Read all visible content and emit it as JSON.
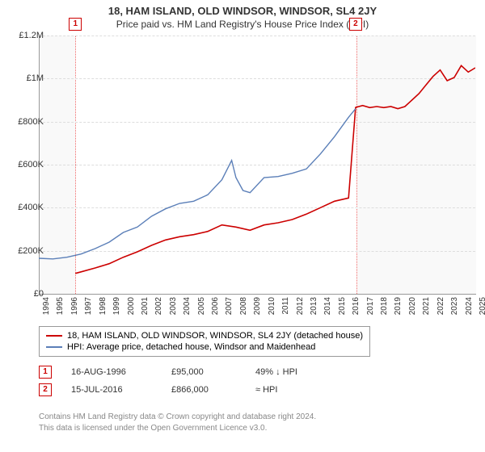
{
  "title": "18, HAM ISLAND, OLD WINDSOR, WINDSOR, SL4 2JY",
  "subtitle": "Price paid vs. HM Land Registry's House Price Index (HPI)",
  "chart": {
    "type": "line",
    "background_color": "#f9f9f9",
    "grid_color": "#dddddd",
    "border_color": "#999999",
    "highlight_band": {
      "x_start": 1996.6,
      "x_end": 2016.5,
      "border_color": "#e66"
    },
    "xlim": [
      1994,
      2025
    ],
    "ylim": [
      0,
      1200000
    ],
    "ytick_step": 200000,
    "yticks": [
      "£0",
      "£200K",
      "£400K",
      "£600K",
      "£800K",
      "£1M",
      "£1.2M"
    ],
    "xticks": [
      1994,
      1995,
      1996,
      1997,
      1998,
      1999,
      2000,
      2001,
      2002,
      2003,
      2004,
      2005,
      2006,
      2007,
      2008,
      2009,
      2010,
      2011,
      2012,
      2013,
      2014,
      2015,
      2016,
      2017,
      2018,
      2019,
      2020,
      2021,
      2022,
      2023,
      2024,
      2025
    ],
    "tick_fontsize": 11,
    "series": [
      {
        "name": "property",
        "label": "18, HAM ISLAND, OLD WINDSOR, WINDSOR, SL4 2JY (detached house)",
        "color": "#cc0000",
        "line_width": 1.6,
        "points": [
          [
            1996.6,
            95000
          ],
          [
            1997,
            102000
          ],
          [
            1998,
            120000
          ],
          [
            1999,
            140000
          ],
          [
            2000,
            170000
          ],
          [
            2001,
            195000
          ],
          [
            2002,
            225000
          ],
          [
            2003,
            250000
          ],
          [
            2004,
            265000
          ],
          [
            2005,
            275000
          ],
          [
            2006,
            290000
          ],
          [
            2007,
            320000
          ],
          [
            2008,
            310000
          ],
          [
            2009,
            295000
          ],
          [
            2010,
            320000
          ],
          [
            2011,
            330000
          ],
          [
            2012,
            345000
          ],
          [
            2013,
            370000
          ],
          [
            2014,
            400000
          ],
          [
            2015,
            430000
          ],
          [
            2016,
            445000
          ],
          [
            2016.5,
            866000
          ],
          [
            2017,
            875000
          ],
          [
            2017.5,
            865000
          ],
          [
            2018,
            870000
          ],
          [
            2018.5,
            865000
          ],
          [
            2019,
            870000
          ],
          [
            2019.5,
            860000
          ],
          [
            2020,
            870000
          ],
          [
            2020.5,
            900000
          ],
          [
            2021,
            930000
          ],
          [
            2021.5,
            970000
          ],
          [
            2022,
            1010000
          ],
          [
            2022.5,
            1040000
          ],
          [
            2023,
            990000
          ],
          [
            2023.5,
            1005000
          ],
          [
            2024,
            1060000
          ],
          [
            2024.5,
            1030000
          ],
          [
            2025,
            1050000
          ]
        ]
      },
      {
        "name": "hpi",
        "label": "HPI: Average price, detached house, Windsor and Maidenhead",
        "color": "#5b7fb8",
        "line_width": 1.4,
        "points": [
          [
            1994,
            165000
          ],
          [
            1995,
            162000
          ],
          [
            1996,
            170000
          ],
          [
            1997,
            185000
          ],
          [
            1998,
            210000
          ],
          [
            1999,
            240000
          ],
          [
            2000,
            285000
          ],
          [
            2001,
            310000
          ],
          [
            2002,
            360000
          ],
          [
            2003,
            395000
          ],
          [
            2004,
            420000
          ],
          [
            2005,
            430000
          ],
          [
            2006,
            460000
          ],
          [
            2007,
            530000
          ],
          [
            2007.7,
            620000
          ],
          [
            2008,
            540000
          ],
          [
            2008.5,
            480000
          ],
          [
            2009,
            470000
          ],
          [
            2010,
            540000
          ],
          [
            2011,
            545000
          ],
          [
            2012,
            560000
          ],
          [
            2013,
            580000
          ],
          [
            2014,
            650000
          ],
          [
            2015,
            730000
          ],
          [
            2016,
            820000
          ],
          [
            2016.5,
            860000
          ]
        ]
      }
    ],
    "markers": [
      {
        "id": "1",
        "x": 1996.6,
        "y": 95000
      },
      {
        "id": "2",
        "x": 2016.5,
        "y": 866000
      }
    ]
  },
  "legend": {
    "items": [
      {
        "color": "#cc0000",
        "label_path": "chart.series.0.label"
      },
      {
        "color": "#5b7fb8",
        "label_path": "chart.series.1.label"
      }
    ]
  },
  "events": [
    {
      "id": "1",
      "date": "16-AUG-1996",
      "price": "£95,000",
      "relation": "49% ↓ HPI"
    },
    {
      "id": "2",
      "date": "15-JUL-2016",
      "price": "£866,000",
      "relation": "≈ HPI"
    }
  ],
  "footer": {
    "line1": "Contains HM Land Registry data © Crown copyright and database right 2024.",
    "line2": "This data is licensed under the Open Government Licence v3.0."
  }
}
